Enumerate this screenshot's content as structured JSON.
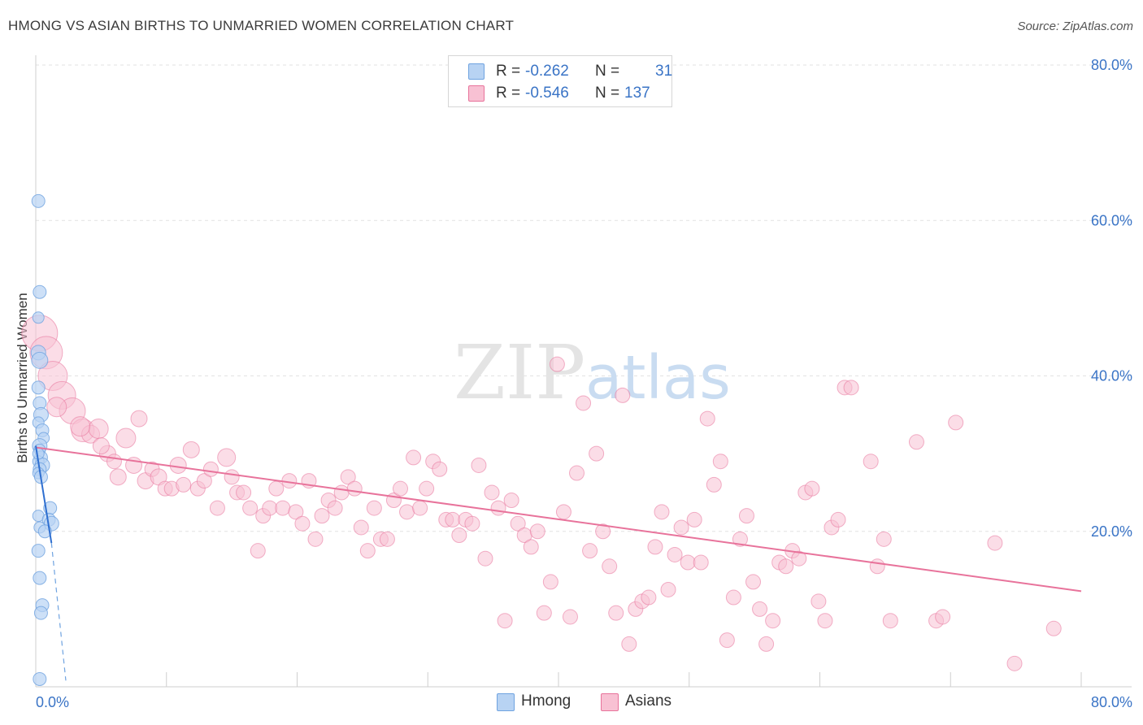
{
  "title": "HMONG VS ASIAN BIRTHS TO UNMARRIED WOMEN CORRELATION CHART",
  "source": "Source: ZipAtlas.com",
  "watermark": {
    "zip": "ZIP",
    "atlas": "atlas"
  },
  "colors": {
    "hmong": "#6fa3e0",
    "hmong_fill": "#b8d3f3",
    "asians": "#e8739b",
    "asians_fill": "#f8c1d3",
    "axis_text": "#3a74c6"
  },
  "legend": {
    "hmong": {
      "r_label": "R =",
      "r_value": "-0.262",
      "n_label": "N =",
      "n_value": "31"
    },
    "asians": {
      "r_label": "R =",
      "r_value": "-0.546",
      "n_label": "N =",
      "n_value": "137"
    }
  },
  "bottom_legend": {
    "hmong": "Hmong",
    "asians": "Asians"
  },
  "chart_data": {
    "type": "scatter",
    "title": "HMONG VS ASIAN BIRTHS TO UNMARRIED WOMEN CORRELATION CHART",
    "xlabel": "",
    "ylabel": "Births to Unmarried Women",
    "xlim": [
      0,
      80
    ],
    "ylim": [
      0,
      80
    ],
    "x_tick_labels": [
      "0.0%",
      "80.0%"
    ],
    "y_tick_labels": [
      "20.0%",
      "40.0%",
      "60.0%",
      "80.0%"
    ],
    "y_ticks": [
      20,
      40,
      60,
      80
    ],
    "grid": true,
    "series": [
      {
        "name": "Hmong",
        "r": -0.262,
        "n": 31,
        "trend": {
          "x0": 0.0,
          "y0": 31.0,
          "x1": 1.2,
          "y1": 18.5,
          "dash_to_x": 2.3,
          "dash_to_y": 0.8
        },
        "points": [
          [
            0.2,
            62.5,
            8
          ],
          [
            0.3,
            50.8,
            8
          ],
          [
            0.2,
            47.5,
            7
          ],
          [
            0.2,
            43.0,
            9
          ],
          [
            0.3,
            42.0,
            10
          ],
          [
            0.2,
            38.5,
            8
          ],
          [
            0.3,
            36.5,
            8
          ],
          [
            0.4,
            35.0,
            9
          ],
          [
            0.2,
            34.0,
            7
          ],
          [
            0.5,
            33.0,
            8
          ],
          [
            0.6,
            32.0,
            7
          ],
          [
            0.3,
            31.0,
            9
          ],
          [
            0.3,
            30.5,
            7
          ],
          [
            0.4,
            29.5,
            8
          ],
          [
            0.2,
            29.0,
            7
          ],
          [
            0.5,
            28.5,
            9
          ],
          [
            0.3,
            28.0,
            8
          ],
          [
            0.2,
            27.5,
            7
          ],
          [
            0.4,
            27.0,
            8
          ],
          [
            1.1,
            23.0,
            8
          ],
          [
            0.2,
            22.0,
            7
          ],
          [
            1.0,
            21.5,
            8
          ],
          [
            1.2,
            21.0,
            9
          ],
          [
            0.3,
            20.5,
            7
          ],
          [
            0.7,
            20.0,
            8
          ],
          [
            0.2,
            17.5,
            8
          ],
          [
            0.3,
            14.0,
            8
          ],
          [
            0.5,
            10.5,
            8
          ],
          [
            0.4,
            9.5,
            8
          ],
          [
            0.3,
            1.0,
            8
          ],
          [
            0.2,
            30.0,
            7
          ]
        ]
      },
      {
        "name": "Asians",
        "r": -0.546,
        "n": 137,
        "trend": {
          "x0": 0.0,
          "y0": 30.8,
          "x1": 80.0,
          "y1": 12.3
        },
        "points": [
          [
            0.3,
            45.5,
            22
          ],
          [
            0.8,
            43.0,
            20
          ],
          [
            1.3,
            40.0,
            18
          ],
          [
            2.0,
            37.5,
            17
          ],
          [
            2.8,
            35.5,
            16
          ],
          [
            3.6,
            33.0,
            14
          ],
          [
            4.2,
            32.5,
            11
          ],
          [
            4.8,
            33.2,
            12
          ],
          [
            5.5,
            30.0,
            10
          ],
          [
            6.0,
            29.0,
            9
          ],
          [
            6.3,
            27.0,
            10
          ],
          [
            6.9,
            32.0,
            12
          ],
          [
            7.5,
            28.5,
            10
          ],
          [
            7.9,
            34.5,
            10
          ],
          [
            8.4,
            26.5,
            10
          ],
          [
            8.9,
            28.0,
            9
          ],
          [
            9.4,
            27.0,
            10
          ],
          [
            9.9,
            25.5,
            9
          ],
          [
            10.4,
            25.5,
            9
          ],
          [
            10.9,
            28.5,
            10
          ],
          [
            11.3,
            26.0,
            9
          ],
          [
            11.9,
            30.5,
            10
          ],
          [
            12.4,
            25.5,
            9
          ],
          [
            12.9,
            26.5,
            9
          ],
          [
            13.4,
            28.0,
            9
          ],
          [
            13.9,
            23.0,
            9
          ],
          [
            14.6,
            29.5,
            11
          ],
          [
            15.0,
            27.0,
            9
          ],
          [
            15.4,
            25.0,
            9
          ],
          [
            15.9,
            25.0,
            9
          ],
          [
            16.4,
            23.0,
            9
          ],
          [
            17.0,
            17.5,
            9
          ],
          [
            17.4,
            22.0,
            9
          ],
          [
            17.9,
            23.0,
            9
          ],
          [
            18.4,
            25.5,
            9
          ],
          [
            18.9,
            23.0,
            9
          ],
          [
            19.4,
            26.5,
            9
          ],
          [
            19.9,
            22.5,
            9
          ],
          [
            20.4,
            21.0,
            9
          ],
          [
            20.9,
            26.5,
            9
          ],
          [
            21.4,
            19.0,
            9
          ],
          [
            21.9,
            22.0,
            9
          ],
          [
            22.4,
            24.0,
            9
          ],
          [
            22.9,
            23.0,
            9
          ],
          [
            23.4,
            25.0,
            9
          ],
          [
            23.9,
            27.0,
            9
          ],
          [
            24.4,
            25.5,
            9
          ],
          [
            24.9,
            20.5,
            9
          ],
          [
            25.4,
            17.5,
            9
          ],
          [
            25.9,
            23.0,
            9
          ],
          [
            26.4,
            19.0,
            9
          ],
          [
            26.9,
            19.0,
            9
          ],
          [
            27.4,
            24.0,
            9
          ],
          [
            27.9,
            25.5,
            9
          ],
          [
            28.4,
            22.5,
            9
          ],
          [
            28.9,
            29.5,
            9
          ],
          [
            29.4,
            23.0,
            9
          ],
          [
            29.9,
            25.5,
            9
          ],
          [
            30.4,
            29.0,
            9
          ],
          [
            30.9,
            28.0,
            9
          ],
          [
            31.4,
            21.5,
            9
          ],
          [
            31.9,
            21.5,
            9
          ],
          [
            32.4,
            19.5,
            9
          ],
          [
            32.9,
            21.5,
            9
          ],
          [
            33.4,
            21.0,
            9
          ],
          [
            33.9,
            28.5,
            9
          ],
          [
            34.4,
            16.5,
            9
          ],
          [
            34.9,
            25.0,
            9
          ],
          [
            35.4,
            23.0,
            9
          ],
          [
            35.9,
            8.5,
            9
          ],
          [
            36.4,
            24.0,
            9
          ],
          [
            36.9,
            21.0,
            9
          ],
          [
            37.4,
            19.5,
            9
          ],
          [
            37.9,
            18.0,
            9
          ],
          [
            38.4,
            20.0,
            9
          ],
          [
            38.9,
            9.5,
            9
          ],
          [
            39.4,
            13.5,
            9
          ],
          [
            39.9,
            41.5,
            9
          ],
          [
            40.4,
            22.5,
            9
          ],
          [
            40.9,
            9.0,
            9
          ],
          [
            41.4,
            27.5,
            9
          ],
          [
            41.9,
            36.5,
            9
          ],
          [
            42.4,
            17.5,
            9
          ],
          [
            42.9,
            30.0,
            9
          ],
          [
            43.4,
            20.0,
            9
          ],
          [
            43.9,
            15.5,
            9
          ],
          [
            44.4,
            9.5,
            9
          ],
          [
            44.9,
            37.5,
            9
          ],
          [
            45.4,
            5.5,
            9
          ],
          [
            45.9,
            10.0,
            9
          ],
          [
            46.4,
            11.0,
            9
          ],
          [
            46.9,
            11.5,
            9
          ],
          [
            47.4,
            18.0,
            9
          ],
          [
            47.9,
            22.5,
            9
          ],
          [
            48.4,
            12.5,
            9
          ],
          [
            48.9,
            17.0,
            9
          ],
          [
            49.4,
            20.5,
            9
          ],
          [
            49.9,
            16.0,
            9
          ],
          [
            50.4,
            21.5,
            9
          ],
          [
            50.9,
            16.0,
            9
          ],
          [
            51.4,
            34.5,
            9
          ],
          [
            51.9,
            26.0,
            9
          ],
          [
            52.4,
            29.0,
            9
          ],
          [
            52.9,
            6.0,
            9
          ],
          [
            53.4,
            11.5,
            9
          ],
          [
            53.9,
            19.0,
            9
          ],
          [
            54.4,
            22.0,
            9
          ],
          [
            54.9,
            13.5,
            9
          ],
          [
            55.4,
            10.0,
            9
          ],
          [
            55.9,
            5.5,
            9
          ],
          [
            56.4,
            8.5,
            9
          ],
          [
            56.9,
            16.0,
            9
          ],
          [
            57.4,
            15.5,
            9
          ],
          [
            57.9,
            17.5,
            9
          ],
          [
            58.4,
            16.5,
            9
          ],
          [
            58.9,
            25.0,
            9
          ],
          [
            59.4,
            25.5,
            9
          ],
          [
            59.9,
            11.0,
            9
          ],
          [
            60.4,
            8.5,
            9
          ],
          [
            60.9,
            20.5,
            9
          ],
          [
            61.4,
            21.5,
            9
          ],
          [
            61.9,
            38.5,
            9
          ],
          [
            62.4,
            38.5,
            9
          ],
          [
            63.9,
            29.0,
            9
          ],
          [
            64.4,
            15.5,
            9
          ],
          [
            64.9,
            19.0,
            9
          ],
          [
            65.4,
            8.5,
            9
          ],
          [
            67.4,
            31.5,
            9
          ],
          [
            68.9,
            8.5,
            9
          ],
          [
            69.4,
            9.0,
            9
          ],
          [
            70.4,
            34.0,
            9
          ],
          [
            73.4,
            18.5,
            9
          ],
          [
            74.9,
            3.0,
            9
          ],
          [
            77.9,
            7.5,
            9
          ],
          [
            1.6,
            36.0,
            12
          ],
          [
            3.4,
            33.5,
            12
          ],
          [
            5.0,
            31.0,
            10
          ]
        ]
      }
    ]
  }
}
